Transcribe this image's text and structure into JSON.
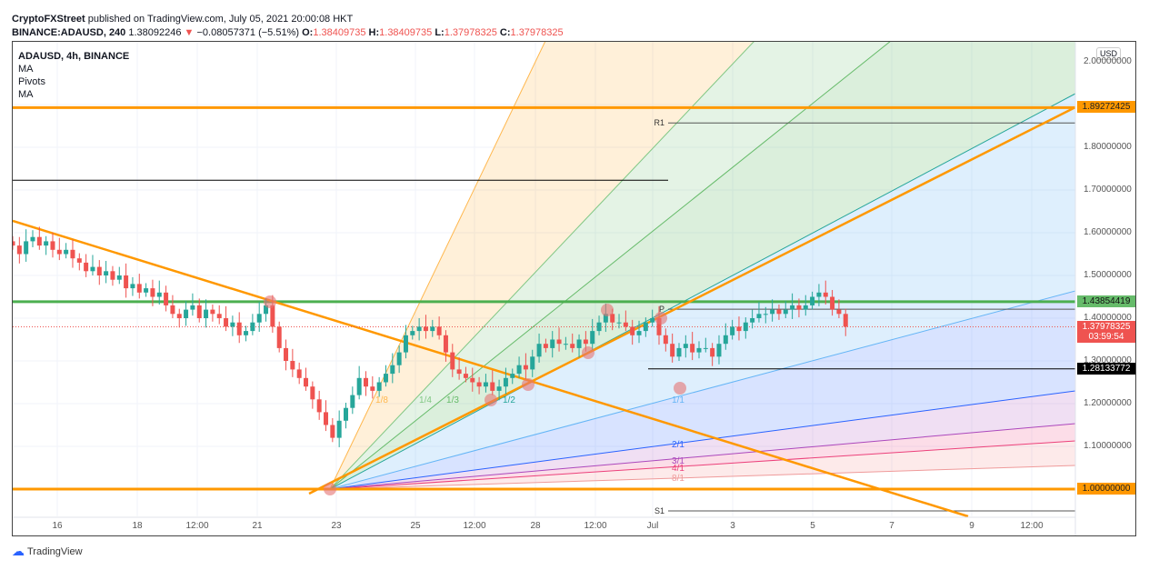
{
  "header": {
    "publisher": "CryptoFXStreet",
    "published_text": "published on TradingView.com, July 05, 2021 20:00:08 HKT",
    "symbol": "BINANCE:ADAUSD, 240",
    "last": "1.38092246",
    "change": "−0.08057371 (−5.51%)",
    "o_label": "O:",
    "o": "1.38409735",
    "h_label": "H:",
    "h": "1.38409735",
    "l_label": "L:",
    "l": "1.37978325",
    "c_label": "C:",
    "c": "1.37978325"
  },
  "legend": [
    "ADAUSD, 4h, BINANCE",
    "MA",
    "Pivots",
    "MA"
  ],
  "currency": "USD",
  "footer": {
    "logo": "TradingView"
  },
  "colors": {
    "up": "#26a69a",
    "down": "#ef5350",
    "orange": "#ff9800",
    "green_level": "#4caf50"
  },
  "chart_data": {
    "type": "candlestick",
    "interval": "4h",
    "ylim": [
      0.93,
      2.05
    ],
    "y_ticks": [
      "2.00000000",
      "1.80000000",
      "1.70000000",
      "1.60000000",
      "1.50000000",
      "1.40000000",
      "1.30000000",
      "1.20000000",
      "1.10000000"
    ],
    "x_ticks": [
      "16",
      "18",
      "12:00",
      "21",
      "23",
      "25",
      "12:00",
      "28",
      "12:00",
      "Jul",
      "3",
      "5",
      "7",
      "9",
      "12:00"
    ],
    "closes": [
      1.57,
      1.55,
      1.58,
      1.59,
      1.57,
      1.58,
      1.56,
      1.55,
      1.56,
      1.54,
      1.53,
      1.51,
      1.52,
      1.5,
      1.51,
      1.49,
      1.5,
      1.47,
      1.48,
      1.46,
      1.47,
      1.45,
      1.46,
      1.43,
      1.41,
      1.4,
      1.42,
      1.43,
      1.4,
      1.42,
      1.41,
      1.4,
      1.38,
      1.39,
      1.36,
      1.37,
      1.39,
      1.41,
      1.43,
      1.38,
      1.33,
      1.3,
      1.28,
      1.26,
      1.24,
      1.21,
      1.18,
      1.15,
      1.12,
      1.16,
      1.19,
      1.22,
      1.26,
      1.24,
      1.23,
      1.25,
      1.27,
      1.29,
      1.32,
      1.36,
      1.37,
      1.38,
      1.37,
      1.38,
      1.36,
      1.32,
      1.28,
      1.27,
      1.26,
      1.25,
      1.24,
      1.25,
      1.23,
      1.24,
      1.26,
      1.27,
      1.29,
      1.28,
      1.31,
      1.34,
      1.33,
      1.35,
      1.34,
      1.34,
      1.33,
      1.35,
      1.34,
      1.37,
      1.39,
      1.41,
      1.39,
      1.39,
      1.38,
      1.36,
      1.37,
      1.39,
      1.4,
      1.36,
      1.34,
      1.31,
      1.33,
      1.34,
      1.32,
      1.33,
      1.33,
      1.31,
      1.34,
      1.36,
      1.38,
      1.37,
      1.39,
      1.4,
      1.41,
      1.41,
      1.42,
      1.41,
      1.42,
      1.43,
      1.42,
      1.43,
      1.45,
      1.46,
      1.45,
      1.42,
      1.41,
      1.38
    ],
    "levels": [
      {
        "label": "1.89272425",
        "price": 1.89272425,
        "color": "#ff9800"
      },
      {
        "label": "1.43854419",
        "price": 1.43854419,
        "color": "#4caf50"
      },
      {
        "label": "1.28133772",
        "price": 1.28133772,
        "color": "#000000"
      },
      {
        "label": "1.00000000",
        "price": 1.0,
        "color": "#ff9800"
      }
    ],
    "last_price": {
      "label": "1.37978325",
      "countdown": "03:59:54"
    },
    "pivots": [
      {
        "label": "R1",
        "price": 1.857
      },
      {
        "label": "P",
        "price": 1.421
      },
      {
        "label": "S1",
        "price": 0.949
      }
    ],
    "gann_fan_labels": [
      "1/8",
      "1/4",
      "1/3",
      "1/2",
      "1/1",
      "2/1",
      "3/1",
      "4/1",
      "8/1"
    ]
  }
}
